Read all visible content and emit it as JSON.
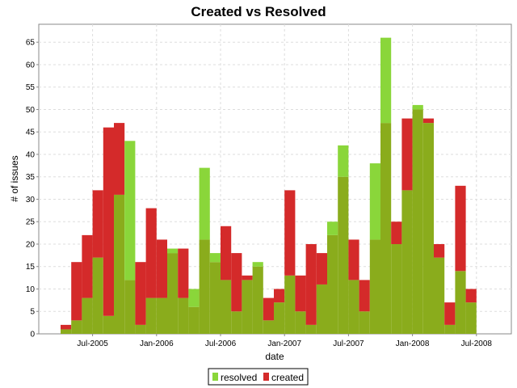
{
  "chart_data": {
    "type": "bar",
    "title": "Created vs Resolved",
    "xlabel": "date",
    "ylabel": "# of issues",
    "ylim": [
      0,
      69
    ],
    "yticks": [
      0,
      5,
      10,
      15,
      20,
      25,
      30,
      35,
      40,
      45,
      50,
      55,
      60,
      65
    ],
    "grid": true,
    "legend_position": "bottom",
    "x_tick_labels": [
      "Jul-2005",
      "Jan-2006",
      "Jul-2006",
      "Jan-2007",
      "Jul-2007",
      "Jan-2008",
      "Jul-2008"
    ],
    "bin": "month",
    "x": [
      "2005-04",
      "2005-05",
      "2005-06",
      "2005-07",
      "2005-08",
      "2005-09",
      "2005-10",
      "2005-11",
      "2005-12",
      "2006-01",
      "2006-02",
      "2006-03",
      "2006-04",
      "2006-05",
      "2006-06",
      "2006-07",
      "2006-08",
      "2006-09",
      "2006-10",
      "2006-11",
      "2006-12",
      "2007-01",
      "2007-02",
      "2007-03",
      "2007-04",
      "2007-05",
      "2007-06",
      "2007-07",
      "2007-08",
      "2007-09",
      "2007-10",
      "2007-11",
      "2007-12",
      "2008-01",
      "2008-02",
      "2008-03",
      "2008-04",
      "2008-05",
      "2008-06",
      "2008-07"
    ],
    "series": [
      {
        "name": "resolved",
        "color": "#8ad63a",
        "values": [
          1,
          3,
          8,
          17,
          4,
          31,
          43,
          2,
          8,
          8,
          19,
          8,
          10,
          37,
          18,
          12,
          5,
          12,
          16,
          3,
          7,
          13,
          5,
          2,
          11,
          25,
          42,
          12,
          5,
          38,
          66,
          20,
          32,
          51,
          47,
          17,
          2,
          14,
          7,
          0
        ]
      },
      {
        "name": "created",
        "color": "#d42a2a",
        "values": [
          2,
          16,
          22,
          32,
          46,
          47,
          12,
          16,
          28,
          21,
          18,
          19,
          6,
          21,
          16,
          24,
          18,
          13,
          15,
          8,
          10,
          32,
          13,
          20,
          18,
          22,
          35,
          21,
          12,
          21,
          47,
          25,
          48,
          50,
          48,
          20,
          7,
          33,
          10,
          0
        ]
      }
    ],
    "overlap_color": "#8aac1c"
  }
}
